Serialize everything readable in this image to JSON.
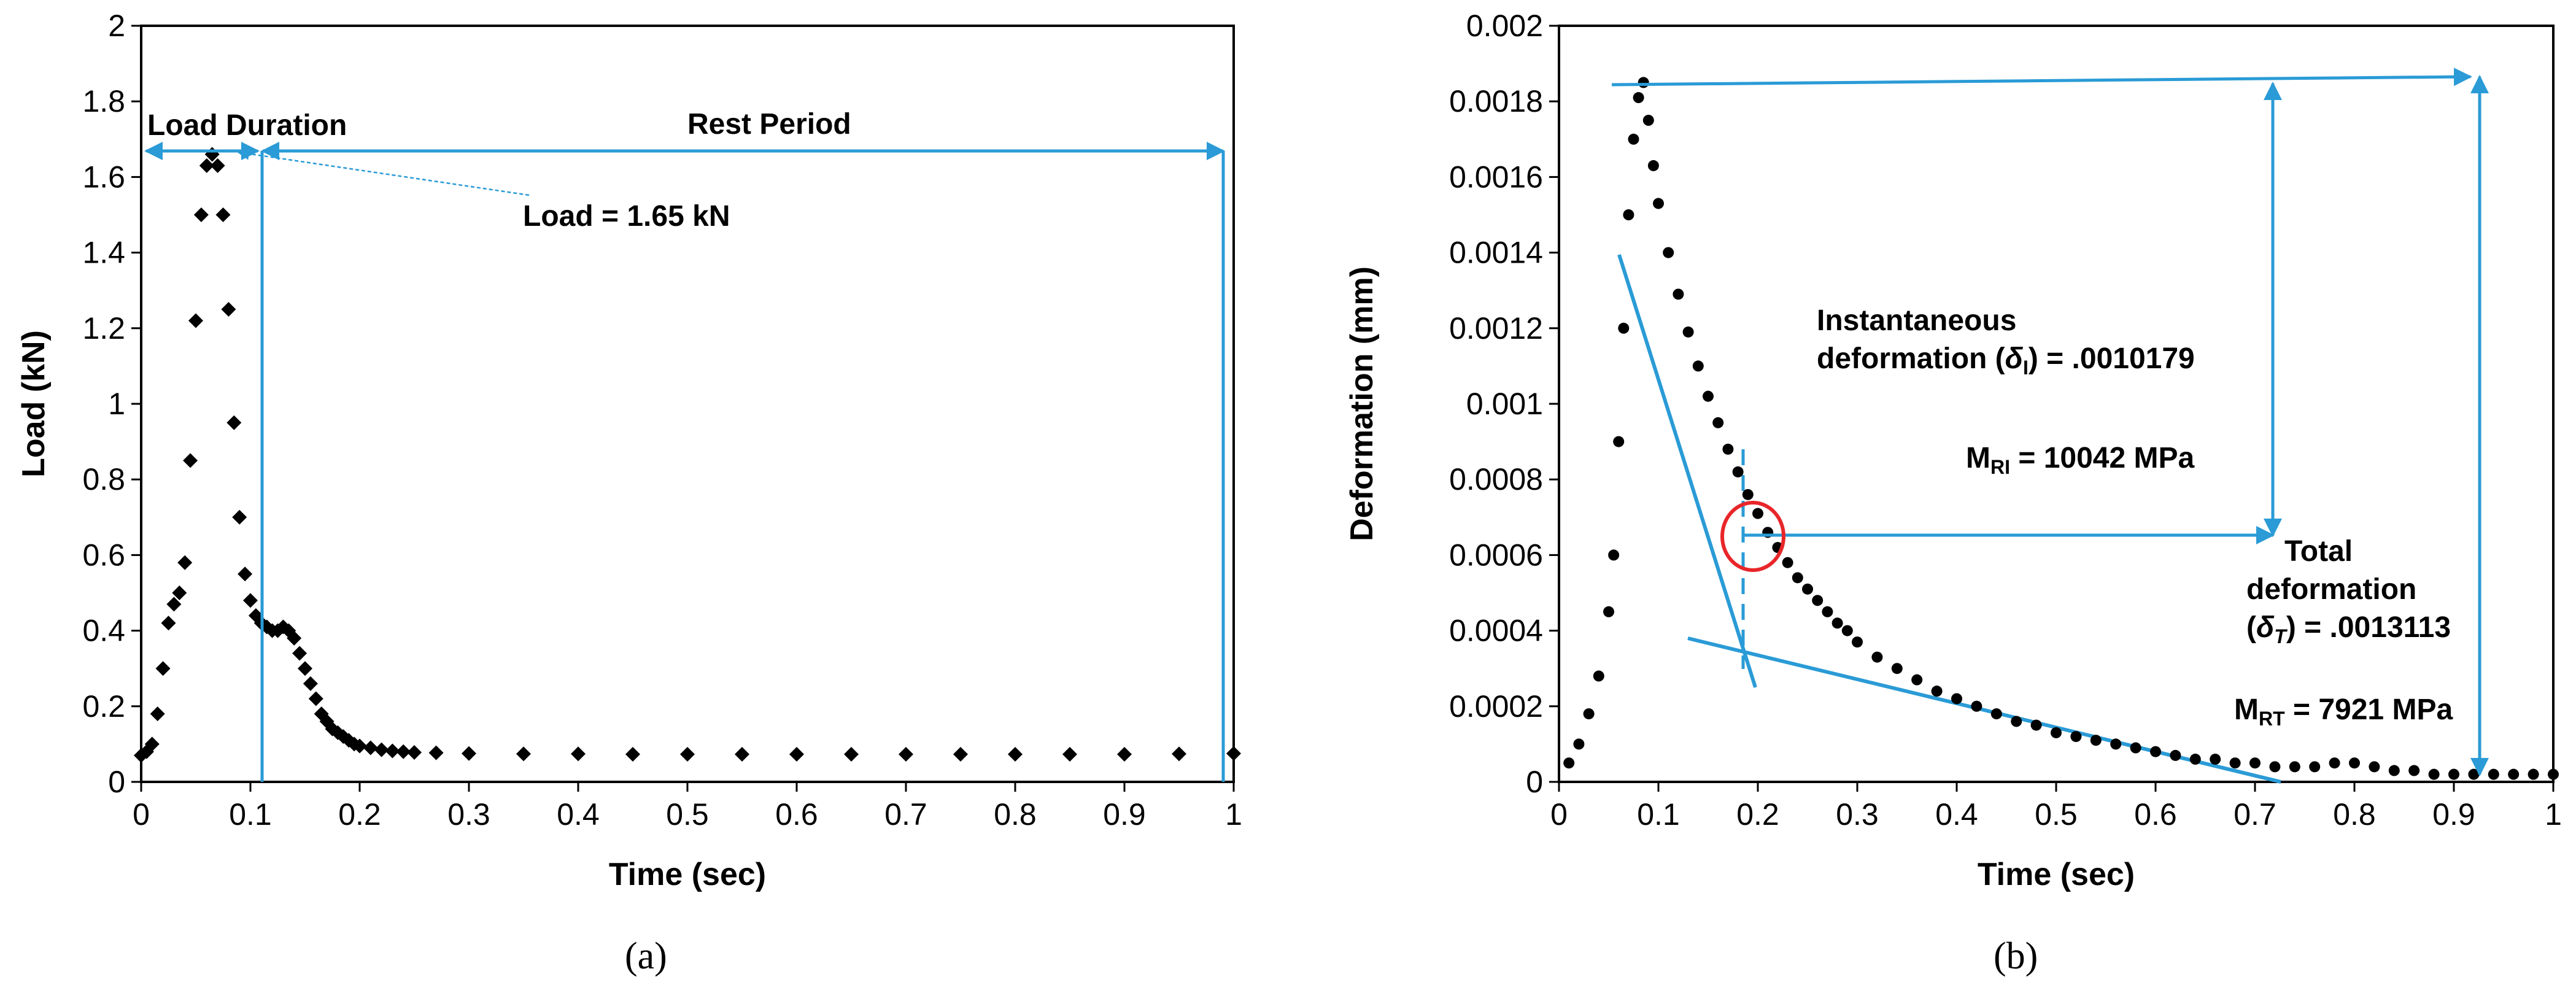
{
  "colors": {
    "accent": "#2a9bd6",
    "marker": "#000000",
    "highlight": "#e8262a"
  },
  "chart_data": [
    {
      "type": "scatter",
      "panel_label": "(a)",
      "xlabel": "Time (sec)",
      "ylabel": "Load (kN)",
      "xlim": [
        0,
        1
      ],
      "ylim": [
        0,
        2
      ],
      "xticks": [
        "0",
        "0.1",
        "0.2",
        "0.3",
        "0.4",
        "0.5",
        "0.6",
        "0.7",
        "0.8",
        "0.9",
        "1"
      ],
      "yticks": [
        "0",
        "0.2",
        "0.4",
        "0.6",
        "0.8",
        "1",
        "1.2",
        "1.4",
        "1.6",
        "1.8",
        "2"
      ],
      "marker": "diamond",
      "series": [
        {
          "x": [
            0,
            0.005,
            0.01,
            0.015,
            0.02,
            0.025,
            0.03,
            0.035,
            0.04,
            0.045,
            0.05,
            0.055,
            0.06,
            0.065,
            0.07,
            0.075,
            0.08,
            0.085,
            0.09,
            0.095,
            0.1,
            0.105,
            0.11,
            0.115,
            0.12,
            0.125,
            0.13,
            0.135,
            0.14,
            0.145,
            0.15,
            0.155,
            0.16,
            0.165,
            0.17,
            0.175,
            0.18,
            0.185,
            0.19,
            0.195,
            0.2,
            0.21,
            0.22,
            0.23,
            0.24,
            0.25,
            0.27,
            0.3,
            0.35,
            0.4,
            0.45,
            0.5,
            0.55,
            0.6,
            0.65,
            0.7,
            0.75,
            0.8,
            0.85,
            0.9,
            0.95,
            1.0
          ],
          "y": [
            0.07,
            0.08,
            0.1,
            0.18,
            0.3,
            0.42,
            0.47,
            0.5,
            0.58,
            0.85,
            1.22,
            1.5,
            1.63,
            1.66,
            1.63,
            1.5,
            1.25,
            0.95,
            0.7,
            0.55,
            0.48,
            0.44,
            0.42,
            0.41,
            0.4,
            0.4,
            0.41,
            0.4,
            0.38,
            0.34,
            0.3,
            0.26,
            0.22,
            0.18,
            0.16,
            0.14,
            0.13,
            0.12,
            0.11,
            0.1,
            0.095,
            0.09,
            0.085,
            0.082,
            0.08,
            0.078,
            0.077,
            0.075,
            0.074,
            0.074,
            0.073,
            0.073,
            0.073,
            0.073,
            0.073,
            0.073,
            0.073,
            0.073,
            0.073,
            0.073,
            0.074,
            0.075
          ]
        }
      ],
      "annotations": {
        "load_duration": "Load Duration",
        "rest_period": "Rest Period",
        "load_value": "Load = 1.65 kN"
      }
    },
    {
      "type": "scatter",
      "panel_label": "(b)",
      "xlabel": "Time (sec)",
      "ylabel": "Deformation (mm)",
      "xlim": [
        0,
        1
      ],
      "ylim": [
        0,
        0.002
      ],
      "xticks": [
        "0",
        "0.1",
        "0.2",
        "0.3",
        "0.4",
        "0.5",
        "0.6",
        "0.7",
        "0.8",
        "0.9",
        "1"
      ],
      "yticks": [
        "0",
        "0.0002",
        "0.0004",
        "0.0006",
        "0.0008",
        "0.001",
        "0.0012",
        "0.0014",
        "0.0016",
        "0.0018",
        "0.002"
      ],
      "marker": "circle",
      "series": [
        {
          "x": [
            0.01,
            0.02,
            0.03,
            0.04,
            0.05,
            0.055,
            0.06,
            0.065,
            0.07,
            0.075,
            0.08,
            0.085,
            0.09,
            0.095,
            0.1,
            0.11,
            0.12,
            0.13,
            0.14,
            0.15,
            0.16,
            0.17,
            0.18,
            0.19,
            0.2,
            0.21,
            0.22,
            0.23,
            0.24,
            0.25,
            0.26,
            0.27,
            0.28,
            0.29,
            0.3,
            0.32,
            0.34,
            0.36,
            0.38,
            0.4,
            0.42,
            0.44,
            0.46,
            0.48,
            0.5,
            0.52,
            0.54,
            0.56,
            0.58,
            0.6,
            0.62,
            0.64,
            0.66,
            0.68,
            0.7,
            0.72,
            0.74,
            0.76,
            0.78,
            0.8,
            0.82,
            0.84,
            0.86,
            0.88,
            0.9,
            0.92,
            0.94,
            0.96,
            0.98,
            1.0
          ],
          "y": [
            5e-05,
            0.0001,
            0.00018,
            0.00028,
            0.00045,
            0.0006,
            0.0009,
            0.0012,
            0.0015,
            0.0017,
            0.00181,
            0.00185,
            0.00175,
            0.00163,
            0.00153,
            0.0014,
            0.00129,
            0.00119,
            0.0011,
            0.00102,
            0.00095,
            0.00088,
            0.00082,
            0.00076,
            0.00071,
            0.00066,
            0.00062,
            0.00058,
            0.00054,
            0.00051,
            0.00048,
            0.00045,
            0.00042,
            0.0004,
            0.00037,
            0.00033,
            0.0003,
            0.00027,
            0.00024,
            0.00022,
            0.0002,
            0.00018,
            0.00016,
            0.00015,
            0.00013,
            0.00012,
            0.00011,
            0.0001,
            9e-05,
            8e-05,
            7e-05,
            6e-05,
            6e-05,
            5e-05,
            5e-05,
            4e-05,
            4e-05,
            4e-05,
            5e-05,
            5e-05,
            4e-05,
            3e-05,
            3e-05,
            2e-05,
            2e-05,
            2e-05,
            2e-05,
            2e-05,
            2e-05,
            2e-05
          ]
        }
      ],
      "annotations": {
        "instantaneous_line1": "Instantaneous",
        "instantaneous_line2_prefix": "deformation (",
        "instantaneous_symbol": "δ",
        "instantaneous_sub": "I",
        "instantaneous_value": ") = .0010179",
        "mri_prefix": "M",
        "mri_sub": "RI",
        "mri_value": " = 10042 MPa",
        "total_line1": "Total",
        "total_line2": "deformation",
        "total_line3_open": "(",
        "total_symbol": "δ",
        "total_sub": "T",
        "total_value": ") = .0013113",
        "mrt_prefix": "M",
        "mrt_sub": "RT",
        "mrt_value": " = 7921 MPa"
      }
    }
  ]
}
